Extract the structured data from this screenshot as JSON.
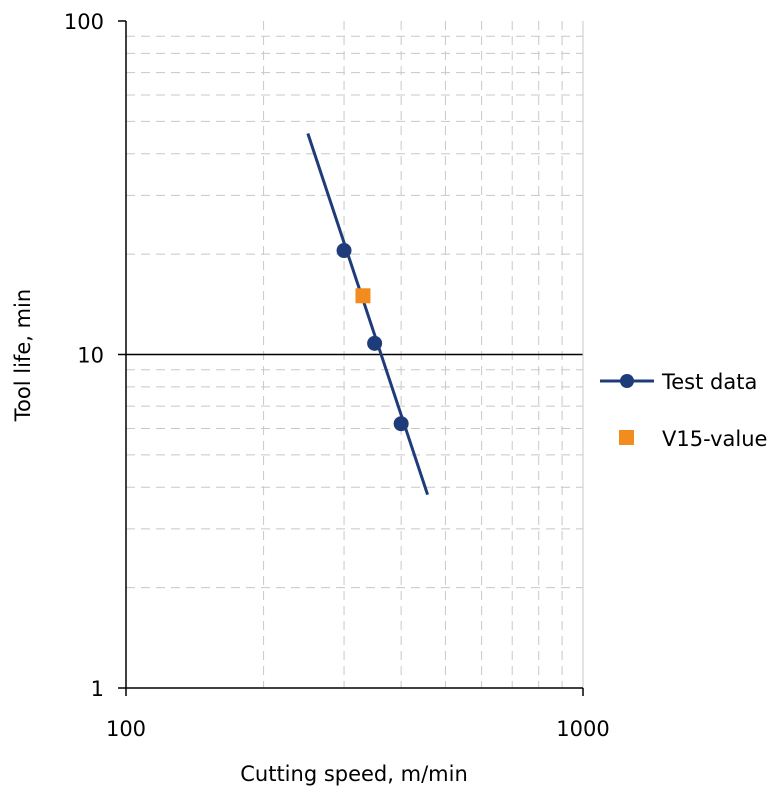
{
  "chart_data": {
    "type": "scatter",
    "xlabel": "Cutting speed, m/min",
    "ylabel": "Tool life, min",
    "x_scale": "log",
    "y_scale": "log",
    "xlim": [
      100,
      1000
    ],
    "ylim": [
      1,
      100
    ],
    "x_ticks": [
      "100",
      "1000"
    ],
    "y_ticks": [
      "1",
      "10",
      "100"
    ],
    "grid": true,
    "legend_position": "right",
    "series": [
      {
        "name": "Test data",
        "kind": "line-markers",
        "color": "#1F3C7A",
        "marker": "circle",
        "points": [
          {
            "x": 300,
            "y": 20.5
          },
          {
            "x": 350,
            "y": 10.8
          },
          {
            "x": 400,
            "y": 6.2
          }
        ],
        "trendline": [
          {
            "x": 250,
            "y": 46
          },
          {
            "x": 457,
            "y": 3.8
          }
        ]
      },
      {
        "name": "V15-value",
        "kind": "markers",
        "color": "#F28C1E",
        "marker": "square",
        "points": [
          {
            "x": 330,
            "y": 15
          }
        ]
      }
    ]
  }
}
